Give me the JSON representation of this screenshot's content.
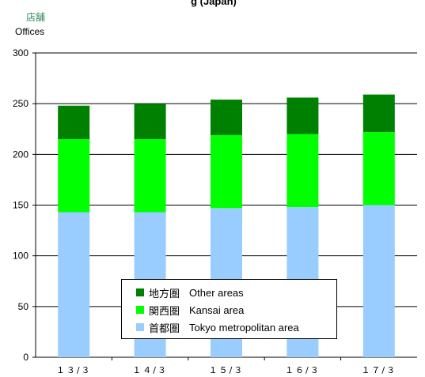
{
  "header": {
    "title_partial": "g  (Japan)",
    "unit_jp": "店舗",
    "unit_en": "Offices"
  },
  "colors": {
    "tokyo": "#99ccff",
    "kansai": "#00ff00",
    "other": "#008000"
  },
  "chart_data": {
    "type": "bar",
    "stacked": true,
    "categories": [
      "１３/３",
      "１４/３",
      "１５/３",
      "１６/３",
      "１７/３"
    ],
    "series": [
      {
        "name": "首都圏 Tokyo metropolitan area",
        "values": [
          143,
          143,
          147,
          148,
          150
        ]
      },
      {
        "name": "関西圏 Kansai area",
        "values": [
          72,
          72,
          72,
          72,
          72
        ]
      },
      {
        "name": "地方圏 Other areas",
        "values": [
          33,
          35,
          35,
          36,
          37
        ]
      }
    ],
    "ylim": [
      0,
      300
    ],
    "yticks": [
      0,
      50,
      100,
      150,
      200,
      250,
      300
    ],
    "grid": true,
    "legend_position": "bottom-center"
  },
  "legend": {
    "items": [
      {
        "jp": "地方圏",
        "en": "Other areas",
        "color_key": "other"
      },
      {
        "jp": "関西圏",
        "en": "Kansai area",
        "color_key": "kansai"
      },
      {
        "jp": "首都圏",
        "en": "Tokyo metropolitan area",
        "color_key": "tokyo"
      }
    ]
  }
}
